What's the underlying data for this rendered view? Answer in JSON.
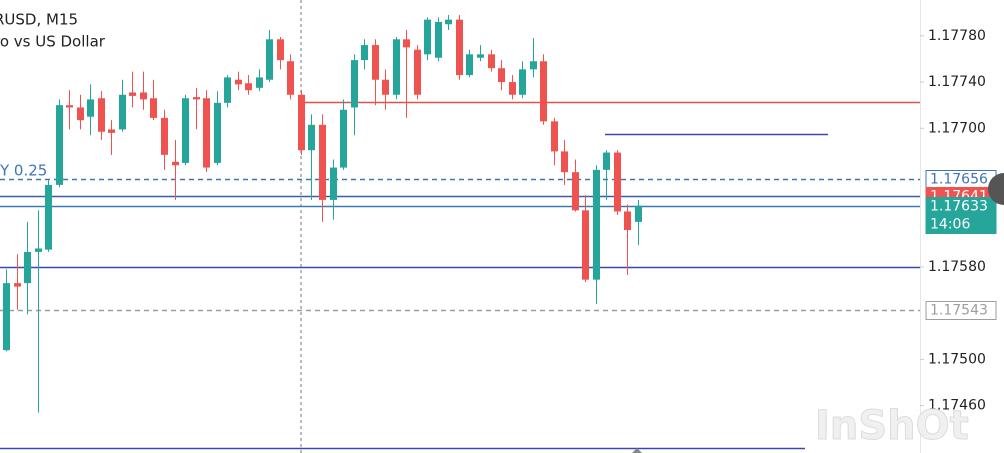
{
  "chart_data": {
    "type": "candlestick",
    "title": "RUSD, M15",
    "subtitle": "ro vs US Dollar",
    "annotation": "Y 0.25",
    "countdown": "14:06",
    "watermark": "InShOt",
    "up_color": "#26a69a",
    "down_color": "#ef5350",
    "open": [
      1.17508,
      1.17566,
      1.17566,
      1.17593,
      1.17595,
      1.17651,
      1.1772,
      1.17718,
      1.1771,
      1.17726,
      1.17699,
      1.17699,
      1.17731,
      1.17731,
      1.17726,
      1.17709,
      1.17671,
      1.1767,
      1.17727,
      1.17726,
      1.1767,
      1.17722,
      1.17742,
      1.17739,
      1.17735,
      1.17742,
      1.17777,
      1.17758,
      1.17729,
      1.17681,
      1.17703,
      1.17638,
      1.17666,
      1.17718,
      1.17759,
      1.17772,
      1.17742,
      1.17729,
      1.17777,
      1.17768,
      1.17764,
      1.17761,
      1.1779,
      1.17794,
      1.17746,
      1.17761,
      1.17764,
      1.17752,
      1.1774,
      1.17729,
      1.17751,
      1.17758,
      1.17706,
      1.1768,
      1.17662,
      1.17629,
      1.17569,
      1.17664,
      1.17679,
      1.17628,
      1.17619
    ],
    "high": [
      1.17578,
      1.17591,
      1.17619,
      1.17629,
      1.17655,
      1.17725,
      1.17733,
      1.17729,
      1.17738,
      1.17732,
      1.17707,
      1.17742,
      1.17749,
      1.17749,
      1.17742,
      1.17716,
      1.1769,
      1.17729,
      1.17735,
      1.17733,
      1.17732,
      1.17746,
      1.17749,
      1.17746,
      1.17751,
      1.17785,
      1.17779,
      1.17764,
      1.17733,
      1.17712,
      1.17712,
      1.17673,
      1.17725,
      1.17764,
      1.17777,
      1.17777,
      1.17751,
      1.17779,
      1.17785,
      1.17772,
      1.17796,
      1.17796,
      1.17798,
      1.17798,
      1.17768,
      1.17772,
      1.17768,
      1.17759,
      1.17746,
      1.17758,
      1.17778,
      1.17764,
      1.17709,
      1.1769,
      1.17673,
      1.17642,
      1.17668,
      1.17681,
      1.17681,
      1.17634,
      1.17638
    ],
    "low": [
      1.17507,
      1.17543,
      1.17539,
      1.17454,
      1.17593,
      1.17649,
      1.17699,
      1.17699,
      1.17694,
      1.1769,
      1.17677,
      1.17697,
      1.17718,
      1.17716,
      1.17707,
      1.17664,
      1.17638,
      1.17668,
      1.17699,
      1.17662,
      1.17668,
      1.17718,
      1.17733,
      1.17729,
      1.17732,
      1.1774,
      1.17751,
      1.17725,
      1.17677,
      1.17638,
      1.17619,
      1.17621,
      1.17664,
      1.17694,
      1.17751,
      1.1772,
      1.17716,
      1.17725,
      1.17709,
      1.17725,
      1.17759,
      1.17758,
      1.17785,
      1.17742,
      1.17744,
      1.17758,
      1.17749,
      1.17733,
      1.17725,
      1.17726,
      1.17744,
      1.17703,
      1.17668,
      1.17651,
      1.17628,
      1.17567,
      1.17548,
      1.17638,
      1.17625,
      1.17573,
      1.17599
    ],
    "close": [
      1.17566,
      1.17563,
      1.17593,
      1.17596,
      1.17651,
      1.1772,
      1.17718,
      1.17707,
      1.17725,
      1.17697,
      1.17696,
      1.17729,
      1.17728,
      1.17725,
      1.17709,
      1.17677,
      1.17668,
      1.17726,
      1.17725,
      1.17666,
      1.17722,
      1.17744,
      1.17738,
      1.17733,
      1.17744,
      1.17777,
      1.17759,
      1.17729,
      1.17681,
      1.17703,
      1.17638,
      1.17666,
      1.17716,
      1.17759,
      1.17772,
      1.17742,
      1.17729,
      1.17777,
      1.1777,
      1.17729,
      1.17794,
      1.17792,
      1.17794,
      1.17746,
      1.17764,
      1.17764,
      1.17752,
      1.1774,
      1.17729,
      1.17751,
      1.17758,
      1.17706,
      1.1768,
      1.17662,
      1.17629,
      1.17569,
      1.17664,
      1.17679,
      1.17628,
      1.17612,
      1.17633
    ],
    "ylim": [
      1.17419,
      1.17811
    ],
    "yticks": [
      {
        "value": 1.1778,
        "label": "1.17780"
      },
      {
        "value": 1.1774,
        "label": "1.17740"
      },
      {
        "value": 1.177,
        "label": "1.17700"
      },
      {
        "value": 1.1758,
        "label": "1.17580"
      },
      {
        "value": 1.175,
        "label": "1.17500"
      },
      {
        "value": 1.1746,
        "label": "1.17460"
      }
    ],
    "levels": [
      {
        "value": 1.17723,
        "color": "#d9534f",
        "style": "solid"
      },
      {
        "value": 1.17695,
        "color": "#3949ab",
        "style": "solid"
      },
      {
        "value": 1.17656,
        "color": "#3f74b5",
        "style": "dashed",
        "box": "outline"
      },
      {
        "value": 1.17641,
        "color": "#3b5bab",
        "style": "solid",
        "box": "filled",
        "box_color": "#ef5350"
      },
      {
        "value": 1.17633,
        "color": "#3b7bab",
        "style": "solid",
        "box": "filled",
        "box_color": "#26a69a"
      },
      {
        "value": 1.1758,
        "color": "#3949ab",
        "style": "solid"
      },
      {
        "value": 1.17543,
        "color": "#9e9e9e",
        "style": "dashed",
        "box": "outline"
      },
      {
        "value": 1.17423,
        "color": "#3949ab",
        "style": "solid"
      }
    ]
  }
}
